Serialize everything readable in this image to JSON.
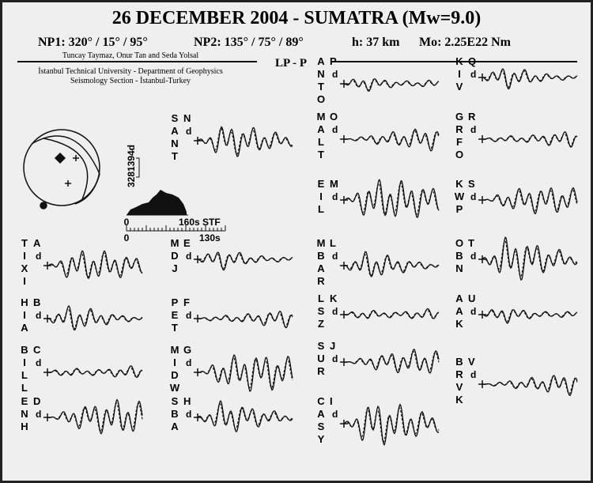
{
  "header": {
    "title": "26 DECEMBER 2004  -  SUMATRA  (Mw=9.0)",
    "np1": "NP1: 320° / 15° / 95°",
    "np2": "NP2: 135° / 75° / 89°",
    "depth": "h: 37 km",
    "moment": "Mo: 2.25E22 Nm"
  },
  "credits": {
    "authors": "Tuncay Taymaz, Onur Tan and Seda Yolsal",
    "affiliation1": "İstanbul Technical University - Department of Geophysics",
    "affiliation2": "Seismology Section - İstanbul-Turkey"
  },
  "phase": "LP - P",
  "scale": {
    "amplitude": "3281394d",
    "stf_zero": "0",
    "stf_label": "160s STF",
    "time_zero": "0",
    "time_label": "130s"
  },
  "stations": [
    {
      "name": "TIXI",
      "label": "A",
      "sub": "d"
    },
    {
      "name": "HIA",
      "label": "B",
      "sub": "d"
    },
    {
      "name": "BILL",
      "label": "C",
      "sub": "d"
    },
    {
      "name": "ENH",
      "label": "D",
      "sub": "d"
    },
    {
      "name": "SANT",
      "label": "N",
      "sub": "d"
    },
    {
      "name": "MDJ",
      "label": "E",
      "sub": "d"
    },
    {
      "name": "PET",
      "label": "F",
      "sub": "d"
    },
    {
      "name": "MIDW",
      "label": "G",
      "sub": "d"
    },
    {
      "name": "SBA",
      "label": "H",
      "sub": "d"
    },
    {
      "name": "ANTO",
      "label": "P",
      "sub": "d"
    },
    {
      "name": "MALT",
      "label": "O",
      "sub": "d"
    },
    {
      "name": "EIL",
      "label": "M",
      "sub": "d"
    },
    {
      "name": "MBAR",
      "label": "L",
      "sub": "d"
    },
    {
      "name": "LSZ",
      "label": "K",
      "sub": "d"
    },
    {
      "name": "SUR",
      "label": "J",
      "sub": "d"
    },
    {
      "name": "CASY",
      "label": "I",
      "sub": "d"
    },
    {
      "name": "KIV",
      "label": "Q",
      "sub": "d"
    },
    {
      "name": "GRFO",
      "label": "R",
      "sub": "d"
    },
    {
      "name": "KWP",
      "label": "S",
      "sub": "d"
    },
    {
      "name": "OBN",
      "label": "T",
      "sub": "d"
    },
    {
      "name": "AAK",
      "label": "U",
      "sub": "d"
    },
    {
      "name": "BRVK",
      "label": "V",
      "sub": "d"
    }
  ]
}
